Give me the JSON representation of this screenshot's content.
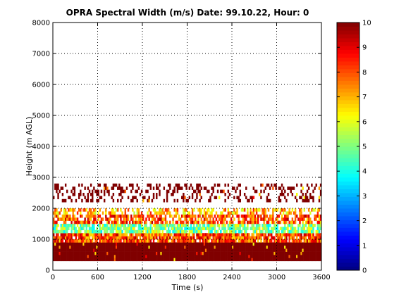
{
  "chart_data": {
    "type": "heatmap",
    "title": "OPRA Spectral Width (m/s)  Date: 99.10.22, Hour: 0",
    "xlabel": "Time (s)",
    "ylabel": "Height (m AGL)",
    "xlim": [
      0,
      3600
    ],
    "ylim": [
      0,
      8000
    ],
    "x_ticks": [
      0,
      600,
      1200,
      1800,
      2400,
      3000,
      3600
    ],
    "y_ticks": [
      0,
      1000,
      2000,
      3000,
      4000,
      5000,
      6000,
      7000,
      8000
    ],
    "grid": true,
    "colorbar": {
      "min": 0,
      "max": 10,
      "ticks": [
        0,
        1,
        2,
        3,
        4,
        5,
        6,
        7,
        8,
        9,
        10
      ],
      "colormap": "jet"
    },
    "layers": [
      {
        "height_range": [
          300,
          900
        ],
        "value": 10,
        "coverage": 1.0
      },
      {
        "height_range": [
          900,
          1200
        ],
        "value": 8,
        "coverage": 0.9
      },
      {
        "height_range": [
          1200,
          1500
        ],
        "value": 5,
        "coverage": 0.8
      },
      {
        "height_range": [
          1500,
          1800
        ],
        "value": 8,
        "coverage": 0.7
      },
      {
        "height_range": [
          1800,
          2000
        ],
        "value": 7,
        "coverage": 0.5
      },
      {
        "height_range": [
          2200,
          2800
        ],
        "value": 10,
        "coverage": 0.3
      }
    ]
  }
}
